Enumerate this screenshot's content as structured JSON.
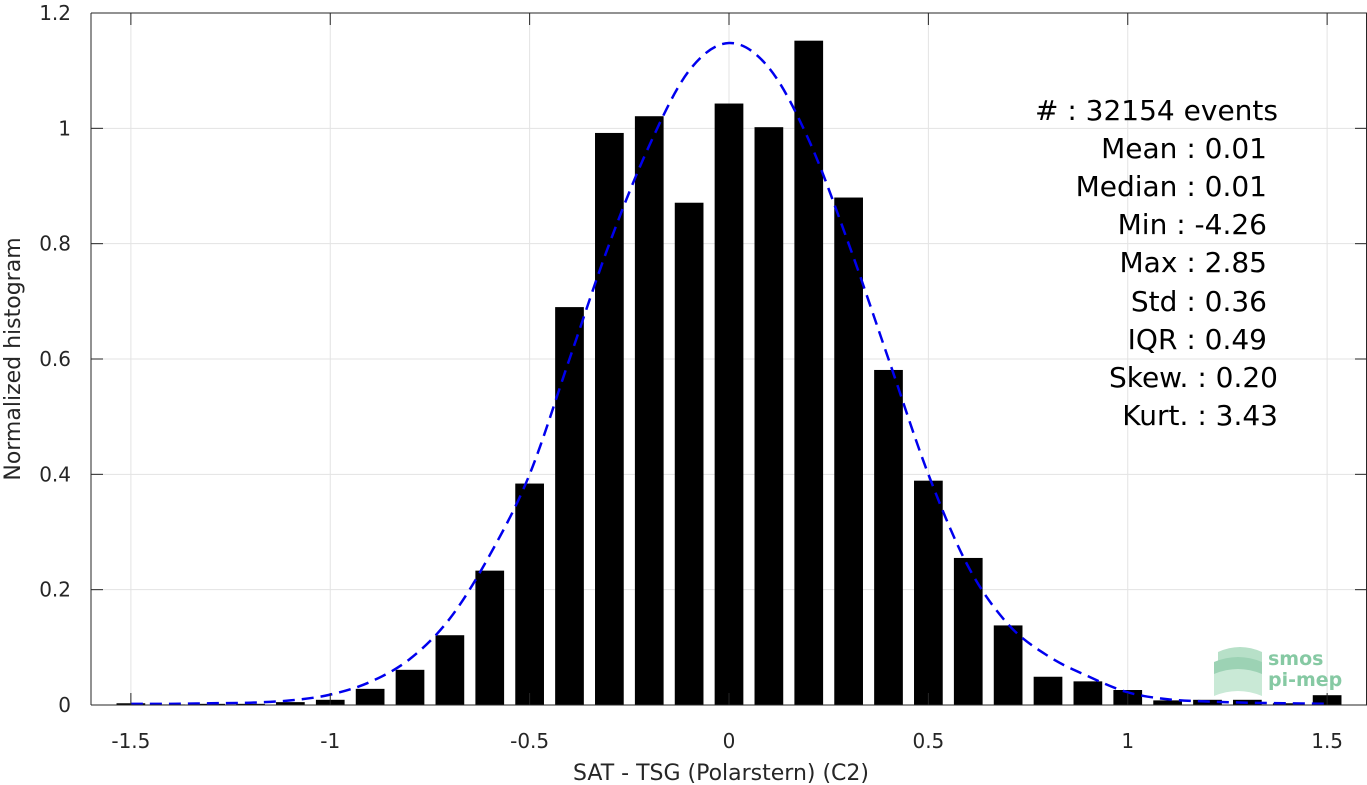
{
  "chart_data": {
    "type": "bar",
    "xlabel": "SAT - TSG (Polarstern) (C2)",
    "ylabel": "Normalized histogram",
    "xlim": [
      -1.6,
      1.6
    ],
    "ylim": [
      0,
      1.2
    ],
    "xticks": [
      -1.5,
      -1,
      -0.5,
      0,
      0.5,
      1,
      1.5
    ],
    "xtick_labels": [
      "-1.5",
      "-1",
      "-0.5",
      "0",
      "0.5",
      "1",
      "1.5"
    ],
    "yticks": [
      0,
      0.2,
      0.4,
      0.6,
      0.8,
      1,
      1.2
    ],
    "ytick_labels": [
      "0",
      "0.2",
      "0.4",
      "0.6",
      "0.8",
      "1",
      "1.2"
    ],
    "grid": true,
    "bar_color": "#000000",
    "fit_color": "#0000ee",
    "bins": [
      -1.5,
      -1.4,
      -1.3,
      -1.2,
      -1.1,
      -1.0,
      -0.9,
      -0.8,
      -0.7,
      -0.6,
      -0.5,
      -0.4,
      -0.3,
      -0.2,
      -0.1,
      0.0,
      0.1,
      0.2,
      0.3,
      0.4,
      0.5,
      0.6,
      0.7,
      0.8,
      0.9,
      1.0,
      1.1,
      1.2,
      1.3,
      1.4,
      1.5
    ],
    "values": [
      0.003,
      0.001,
      0.002,
      0.002,
      0.005,
      0.009,
      0.028,
      0.061,
      0.121,
      0.233,
      0.384,
      0.69,
      0.992,
      1.021,
      0.871,
      1.043,
      1.002,
      1.152,
      0.88,
      0.581,
      0.389,
      0.255,
      0.138,
      0.049,
      0.041,
      0.026,
      0.008,
      0.009,
      0.009,
      0.003,
      0.017
    ],
    "fit_curve": {
      "style": "dashed",
      "x": [
        -1.5,
        -1.4,
        -1.3,
        -1.2,
        -1.1,
        -1.0,
        -0.9,
        -0.8,
        -0.7,
        -0.6,
        -0.5,
        -0.4,
        -0.3,
        -0.2,
        -0.1,
        0.0,
        0.1,
        0.2,
        0.3,
        0.4,
        0.5,
        0.6,
        0.7,
        0.8,
        0.9,
        1.0,
        1.1,
        1.2,
        1.3,
        1.4,
        1.5
      ],
      "y": [
        0.002,
        0.002,
        0.003,
        0.004,
        0.008,
        0.018,
        0.04,
        0.08,
        0.15,
        0.26,
        0.4,
        0.6,
        0.8,
        0.97,
        1.1,
        1.148,
        1.105,
        0.98,
        0.8,
        0.6,
        0.4,
        0.24,
        0.14,
        0.085,
        0.05,
        0.022,
        0.01,
        0.006,
        0.004,
        0.003,
        0.002
      ]
    }
  },
  "stats": [
    {
      "label": "#  ",
      "value": ": 32154 events"
    },
    {
      "label": "Mean ",
      "value": ": 0.01"
    },
    {
      "label": "Median ",
      "value": ": 0.01"
    },
    {
      "label": "Min ",
      "value": ": -4.26"
    },
    {
      "label": "Max ",
      "value": ": 2.85"
    },
    {
      "label": "Std ",
      "value": ": 0.36"
    },
    {
      "label": "IQR ",
      "value": ": 0.49"
    },
    {
      "label": "Skew. ",
      "value": ": 0.20"
    },
    {
      "label": "Kurt. ",
      "value": ": 3.43"
    }
  ],
  "logo": {
    "line1": "smos",
    "line2": "pi-mep",
    "color": "#86c9a3"
  }
}
